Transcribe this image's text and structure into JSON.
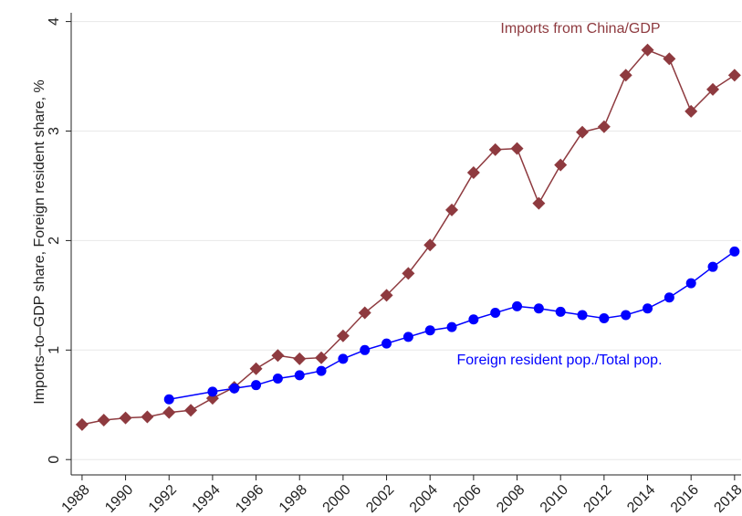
{
  "chart_data": {
    "type": "line",
    "y_label": "Imports–to–GDP share, Foreign resident share, %",
    "xlim": [
      1987.5,
      2018.3
    ],
    "ylim": [
      -0.14,
      4.08
    ],
    "xticks": [
      1988,
      1990,
      1992,
      1994,
      1996,
      1998,
      2000,
      2002,
      2004,
      2006,
      2008,
      2010,
      2012,
      2014,
      2016,
      2018
    ],
    "yticks": [
      0,
      1,
      2,
      3,
      4
    ],
    "grid": true,
    "series": [
      {
        "name": "Imports from China/GDP",
        "color": "#8e3a3f",
        "marker": "diamond",
        "x": [
          1988,
          1989,
          1990,
          1991,
          1992,
          1993,
          1994,
          1995,
          1996,
          1997,
          1998,
          1999,
          2000,
          2001,
          2002,
          2003,
          2004,
          2005,
          2006,
          2007,
          2008,
          2009,
          2010,
          2011,
          2012,
          2013,
          2014,
          2015,
          2016,
          2017,
          2018
        ],
        "values": [
          0.32,
          0.36,
          0.38,
          0.39,
          0.43,
          0.45,
          0.56,
          0.66,
          0.83,
          0.95,
          0.92,
          0.93,
          1.13,
          1.34,
          1.5,
          1.7,
          1.96,
          2.28,
          2.62,
          2.83,
          2.84,
          2.34,
          2.69,
          2.99,
          3.04,
          3.51,
          3.74,
          3.66,
          3.18,
          3.38,
          3.51
        ]
      },
      {
        "name": "Foreign resident pop./Total pop.",
        "color": "#0000ff",
        "marker": "circle",
        "x": [
          1992,
          1994,
          1995,
          1996,
          1997,
          1998,
          1999,
          2000,
          2001,
          2002,
          2003,
          2004,
          2005,
          2006,
          2007,
          2008,
          2009,
          2010,
          2011,
          2012,
          2013,
          2014,
          2015,
          2016,
          2017,
          2018
        ],
        "values": [
          0.55,
          0.62,
          0.65,
          0.68,
          0.74,
          0.77,
          0.81,
          0.92,
          1.0,
          1.06,
          1.12,
          1.18,
          1.21,
          1.28,
          1.34,
          1.4,
          1.38,
          1.35,
          1.32,
          1.29,
          1.32,
          1.38,
          1.48,
          1.61,
          1.76,
          1.9
        ]
      }
    ]
  }
}
